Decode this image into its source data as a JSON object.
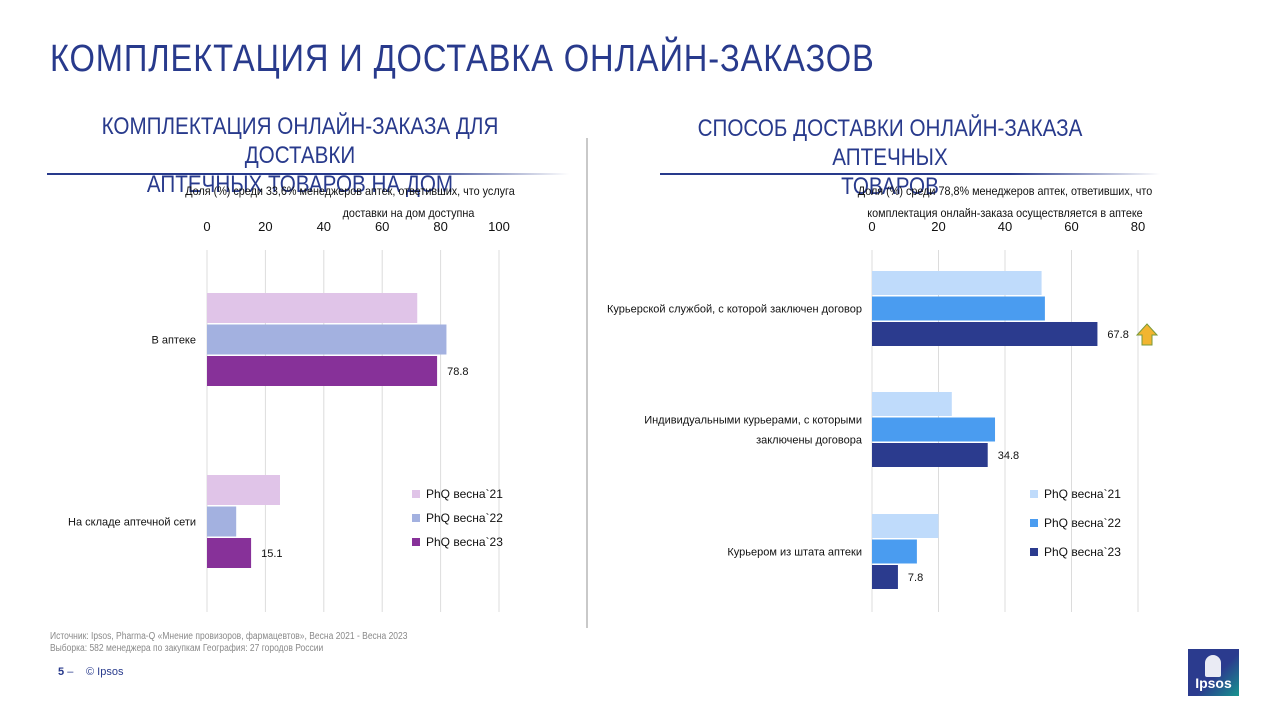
{
  "page": {
    "title": "КОМПЛЕКТАЦИЯ И ДОСТАВКА ОНЛАЙН-ЗАКАЗОВ",
    "footer": {
      "source_line1": "Источник: Ipsos, Pharma-Q «Мнение провизоров, фармацевтов», Весна 2021 - Весна 2023",
      "source_line2": "Выборка: 582 менеджера по закупкам  География: 27 городов России",
      "page_number": "5",
      "dash": "–",
      "copyright": "© Ipsos"
    },
    "logo_text": "Ipsos"
  },
  "left_panel": {
    "title_line1": "КОМПЛЕКТАЦИЯ ОНЛАЙН-ЗАКАЗА ДЛЯ ДОСТАВКИ",
    "title_line2": "АПТЕЧНЫХ ТОВАРОВ НА ДОМ",
    "subtitle_line1": "Доля (%) среди 33,6% менеджеров аптек, ответивших, что услуга",
    "subtitle_line2": "доставки на дом доступна"
  },
  "right_panel": {
    "title_line1": "СПОСОБ ДОСТАВКИ ОНЛАЙН-ЗАКАЗА АПТЕЧНЫХ",
    "title_line2": "ТОВАРОВ",
    "subtitle_line1": "Доля (%) среди 78,8% менеджеров аптек, ответивших, что",
    "subtitle_line2": "комплектация онлайн-заказа осуществляется в аптеке"
  },
  "chart_data": [
    {
      "type": "bar",
      "orientation": "horizontal",
      "categories": [
        "В аптеке",
        "На складе  аптечной сети"
      ],
      "series": [
        {
          "name": "PhQ весна`21",
          "color": "#e0c4e8",
          "values": [
            72,
            25
          ],
          "labels": [
            "",
            ""
          ]
        },
        {
          "name": "PhQ весна`22",
          "color": "#a3b1e0",
          "values": [
            82,
            10
          ],
          "labels": [
            "",
            ""
          ]
        },
        {
          "name": "PhQ весна`23",
          "color": "#873199",
          "values": [
            78.8,
            15.1
          ],
          "labels": [
            "78.8",
            "15.1"
          ]
        }
      ],
      "xlim": [
        0,
        100
      ],
      "ticks": [
        "0",
        "20",
        "40",
        "60",
        "80",
        "100"
      ],
      "grid": true,
      "legend": "bottom-right"
    },
    {
      "type": "bar",
      "orientation": "horizontal",
      "categories": [
        "Курьерской службой, с которой заключен договор",
        "Индивидуальными  курьерами, с которыми заключены договора",
        "Курьером из штата аптеки"
      ],
      "category_lines": [
        [
          "Курьерской службой, с которой заключен договор"
        ],
        [
          "Индивидуальными  курьерами, с которыми",
          "заключены договора"
        ],
        [
          "Курьером из штата аптеки"
        ]
      ],
      "series": [
        {
          "name": "PhQ весна`21",
          "color": "#bfdbfb",
          "values": [
            51,
            24,
            20
          ],
          "labels": [
            "",
            "",
            ""
          ]
        },
        {
          "name": "PhQ весна`22",
          "color": "#4a9cf0",
          "values": [
            52,
            37,
            13.5
          ],
          "labels": [
            "",
            "",
            ""
          ]
        },
        {
          "name": "PhQ весна`23",
          "color": "#2b3b8e",
          "values": [
            67.8,
            34.8,
            7.8
          ],
          "labels": [
            "67.8",
            "34.8",
            "7.8"
          ]
        }
      ],
      "xlim": [
        0,
        80
      ],
      "ticks": [
        "0",
        "20",
        "40",
        "60",
        "80"
      ],
      "grid": true,
      "legend": "bottom-right",
      "annotations": [
        {
          "category": "Курьерской службой, с которой заключен договор",
          "symbol": "up-arrow",
          "color": "#f2b530"
        }
      ]
    }
  ]
}
